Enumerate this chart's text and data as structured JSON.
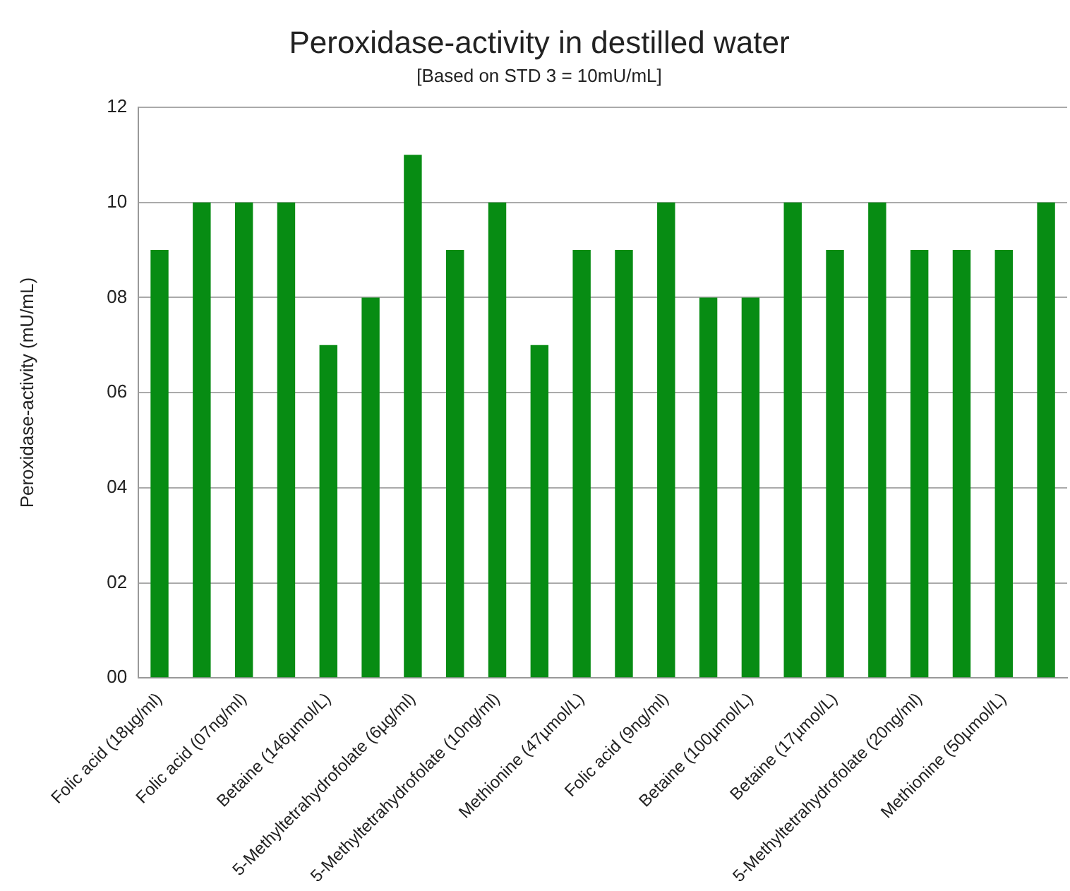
{
  "chart_data": {
    "type": "bar",
    "title": "Peroxidase-activity in destilled water",
    "subtitle": "[Based on STD 3 = 10mU/mL]",
    "ylabel": "Peroxidase-activity (mU/mL)",
    "categories": [
      "Folic acid (18µg/ml)",
      null,
      "Folic acid (07ng/ml)",
      null,
      "Betaine (146µmol/L)",
      null,
      "5-Methyltetrahydrofolate (6µg/ml)",
      null,
      "5-Methyltetrahydrofolate (10ng/ml)",
      null,
      "Methionine (47µmol/L)",
      null,
      "Folic acid (9ng/ml)",
      null,
      "Betaine (100µmol/L)",
      null,
      "Betaine (17µmol/L)",
      null,
      "5-Methyltetrahydrofolate (20ng/ml)",
      null,
      "Methionine (50µmol/L)",
      null
    ],
    "values": [
      9,
      10,
      10,
      10,
      7,
      8,
      11,
      9,
      10,
      7,
      9,
      9,
      10,
      8,
      8,
      10,
      9,
      10,
      9,
      9,
      9,
      10
    ],
    "color": "#078c13",
    "ylim": [
      0,
      12
    ],
    "yticks": [
      {
        "value": 0,
        "label": "00"
      },
      {
        "value": 2,
        "label": "02"
      },
      {
        "value": 4,
        "label": "04"
      },
      {
        "value": 6,
        "label": "06"
      },
      {
        "value": 8,
        "label": "08"
      },
      {
        "value": 10,
        "label": "10"
      },
      {
        "value": 12,
        "label": "12"
      }
    ],
    "grid": "y",
    "legend": false
  }
}
